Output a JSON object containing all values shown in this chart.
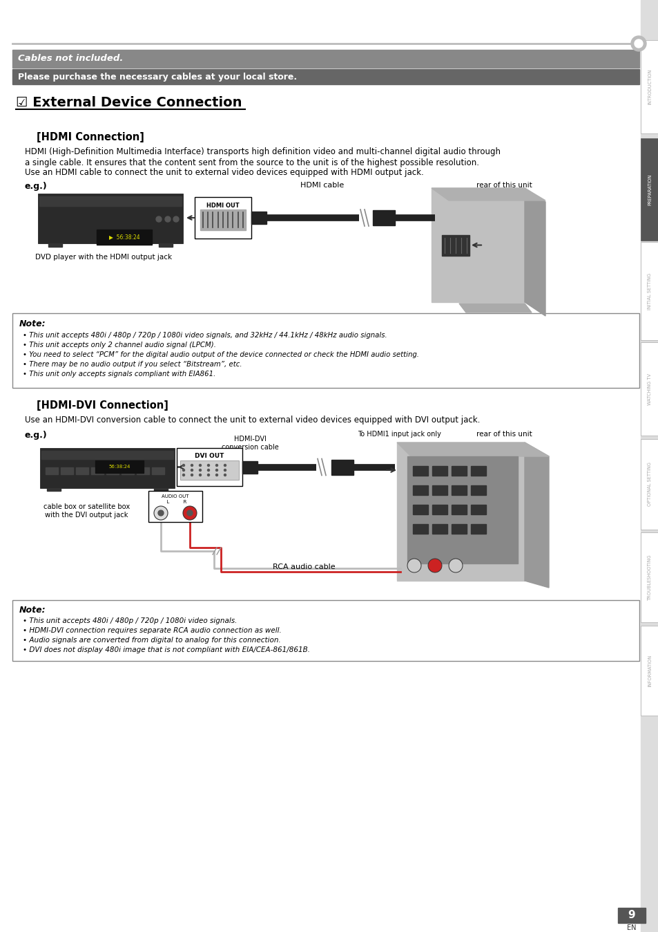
{
  "page_bg": "#ffffff",
  "sidebar_bg": "#cccccc",
  "sidebar_labels": [
    "INTRODUCTION",
    "PREPARATION",
    "INITIAL SETTING",
    "WATCHING TV",
    "OPTIONAL SETTING",
    "TROUBLESHOOTING",
    "INFORMATION"
  ],
  "sidebar_active_idx": 1,
  "sidebar_active_bg": "#555555",
  "sidebar_inactive_bg": "#ffffff",
  "sidebar_border": "#999999",
  "top_line_color": "#aaaaaa",
  "header_bar1_bg": "#888888",
  "header_bar1_text": "Cables not included.",
  "header_bar1_text_color": "#ffffff",
  "header_bar2_bg": "#666666",
  "header_bar2_text": "Please purchase the necessary cables at your local store.",
  "header_bar2_text_color": "#ffffff",
  "title": "☑ External Device Connection",
  "title_color": "#000000",
  "hdmi_section_title": "[HDMI Connection]",
  "hdmi_desc1": "HDMI (High-Definition Multimedia Interface) transports high definition video and multi-channel digital audio through",
  "hdmi_desc2": "a single cable. It ensures that the content sent from the source to the unit is of the highest possible resolution.",
  "hdmi_desc3": "Use an HDMI cable to connect the unit to external video devices equipped with HDMI output jack.",
  "eg_label": "e.g.)",
  "rear_label": "rear of this unit",
  "hdmi_cable_label": "HDMI cable",
  "hdmi_out_label": "HDMI OUT",
  "dvd_label": "DVD player with the HDMI output jack",
  "note1_title": "Note:",
  "note1_bullets": [
    "This unit accepts 480i / 480p / 720p / 1080i video signals, and 32kHz / 44.1kHz / 48kHz audio signals.",
    "This unit accepts only 2 channel audio signal (LPCM).",
    "You need to select “PCM” for the digital audio output of the device connected or check the HDMI audio setting.",
    "There may be no audio output if you select “Bitstream”, etc.",
    "This unit only accepts signals compliant with EIA861."
  ],
  "hdmi_dvi_section_title": "[HDMI-DVI Connection]",
  "hdmi_dvi_desc": "Use an HDMI-DVI conversion cable to connect the unit to external video devices equipped with DVI output jack.",
  "eg2_label": "e.g.)",
  "hdmi_dvi_cable_label": "HDMI-DVI\nconversion cable",
  "to_hdmi1_label": "To HDMI1 input jack only",
  "rear2_label": "rear of this unit",
  "dvi_out_label": "DVI OUT",
  "audio_out_label": "AUDIO OUT\n  L         R",
  "rca_cable_label": "RCA audio cable",
  "cable_box_label": "cable box or satellite box\nwith the DVI output jack",
  "note2_title": "Note:",
  "note2_bullets": [
    "This unit accepts 480i / 480p / 720p / 1080i video signals.",
    "HDMI-DVI connection requires separate RCA audio connection as well.",
    "Audio signals are converted from digital to analog for this connection.",
    "DVI does not display 480i image that is not compliant with EIA/CEA-861/861B."
  ],
  "page_num": "9",
  "page_num_bg": "#555555",
  "page_num_color": "#ffffff"
}
